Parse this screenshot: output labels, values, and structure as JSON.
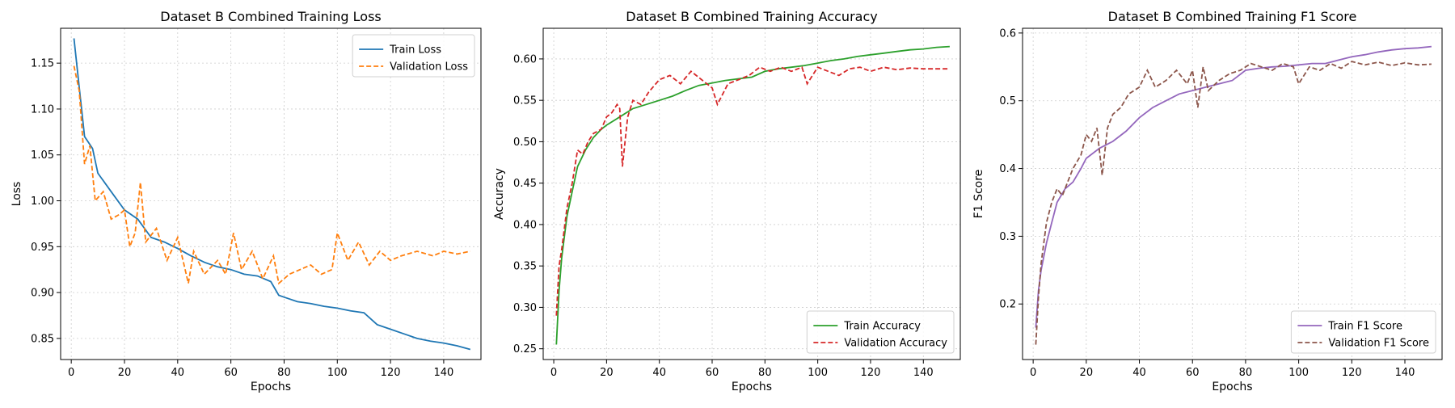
{
  "chart_data": [
    {
      "type": "line",
      "title": "Dataset B Combined Training Loss",
      "xlabel": "Epochs",
      "ylabel": "Loss",
      "xlim": [
        -4,
        154
      ],
      "ylim": [
        0.827,
        1.188
      ],
      "xticks": [
        0,
        20,
        40,
        60,
        80,
        100,
        120,
        140
      ],
      "yticks": [
        0.85,
        0.9,
        0.95,
        1.0,
        1.05,
        1.1,
        1.15
      ],
      "ytick_labels": [
        "0.85",
        "0.90",
        "0.95",
        "1.00",
        "1.05",
        "1.10",
        "1.15"
      ],
      "grid": true,
      "legend_position": "top-right",
      "series": [
        {
          "name": "Train Loss",
          "color": "#1f77b4",
          "style": "solid",
          "x": [
            1,
            5,
            8,
            10,
            15,
            20,
            25,
            30,
            35,
            40,
            45,
            50,
            55,
            60,
            65,
            70,
            75,
            78,
            80,
            85,
            90,
            95,
            100,
            105,
            110,
            115,
            120,
            125,
            130,
            135,
            140,
            145,
            150
          ],
          "y": [
            1.177,
            1.07,
            1.057,
            1.03,
            1.01,
            0.99,
            0.98,
            0.96,
            0.955,
            0.948,
            0.94,
            0.933,
            0.928,
            0.925,
            0.92,
            0.918,
            0.912,
            0.897,
            0.895,
            0.89,
            0.888,
            0.885,
            0.883,
            0.88,
            0.878,
            0.865,
            0.86,
            0.855,
            0.85,
            0.847,
            0.845,
            0.842,
            0.838
          ]
        },
        {
          "name": "Validation Loss",
          "color": "#ff7f0e",
          "style": "dashed",
          "x": [
            1,
            3,
            5,
            7,
            9,
            12,
            15,
            18,
            20,
            22,
            24,
            26,
            28,
            32,
            36,
            40,
            44,
            46,
            50,
            55,
            58,
            61,
            64,
            68,
            72,
            76,
            78,
            82,
            86,
            90,
            94,
            98,
            100,
            104,
            108,
            112,
            116,
            120,
            124,
            130,
            136,
            140,
            145,
            150
          ],
          "y": [
            1.147,
            1.12,
            1.04,
            1.06,
            1.0,
            1.01,
            0.98,
            0.985,
            0.99,
            0.95,
            0.965,
            1.02,
            0.955,
            0.97,
            0.935,
            0.96,
            0.91,
            0.945,
            0.92,
            0.935,
            0.92,
            0.965,
            0.925,
            0.945,
            0.915,
            0.94,
            0.91,
            0.92,
            0.925,
            0.93,
            0.92,
            0.925,
            0.965,
            0.935,
            0.955,
            0.93,
            0.945,
            0.935,
            0.94,
            0.945,
            0.94,
            0.945,
            0.942,
            0.945
          ]
        }
      ]
    },
    {
      "type": "line",
      "title": "Dataset B Combined Training Accuracy",
      "xlabel": "Epochs",
      "ylabel": "Accuracy",
      "xlim": [
        -4,
        154
      ],
      "ylim": [
        0.237,
        0.637
      ],
      "xticks": [
        0,
        20,
        40,
        60,
        80,
        100,
        120,
        140
      ],
      "yticks": [
        0.25,
        0.3,
        0.35,
        0.4,
        0.45,
        0.5,
        0.55,
        0.6
      ],
      "ytick_labels": [
        "0.25",
        "0.30",
        "0.35",
        "0.40",
        "0.45",
        "0.50",
        "0.55",
        "0.60"
      ],
      "grid": true,
      "legend_position": "bottom-right",
      "series": [
        {
          "name": "Train Accuracy",
          "color": "#2ca02c",
          "style": "solid",
          "x": [
            1,
            2,
            3,
            5,
            7,
            9,
            12,
            15,
            18,
            20,
            25,
            30,
            35,
            40,
            45,
            50,
            55,
            60,
            65,
            70,
            75,
            80,
            85,
            90,
            95,
            100,
            105,
            110,
            115,
            120,
            125,
            130,
            135,
            140,
            145,
            150
          ],
          "y": [
            0.255,
            0.32,
            0.36,
            0.41,
            0.44,
            0.47,
            0.49,
            0.505,
            0.515,
            0.52,
            0.53,
            0.54,
            0.545,
            0.55,
            0.555,
            0.562,
            0.568,
            0.571,
            0.574,
            0.576,
            0.578,
            0.585,
            0.588,
            0.59,
            0.592,
            0.595,
            0.598,
            0.6,
            0.603,
            0.605,
            0.607,
            0.609,
            0.611,
            0.612,
            0.614,
            0.615
          ]
        },
        {
          "name": "Validation Accuracy",
          "color": "#d62728",
          "style": "dashed",
          "x": [
            1,
            2,
            3,
            5,
            7,
            9,
            11,
            13,
            15,
            18,
            20,
            22,
            24,
            25,
            26,
            28,
            30,
            33,
            36,
            40,
            44,
            48,
            52,
            56,
            60,
            62,
            66,
            70,
            74,
            78,
            82,
            86,
            90,
            94,
            96,
            100,
            104,
            108,
            112,
            116,
            120,
            125,
            130,
            135,
            140,
            145,
            150
          ],
          "y": [
            0.29,
            0.35,
            0.37,
            0.42,
            0.45,
            0.49,
            0.485,
            0.5,
            0.51,
            0.515,
            0.53,
            0.535,
            0.545,
            0.54,
            0.47,
            0.53,
            0.55,
            0.545,
            0.56,
            0.575,
            0.58,
            0.57,
            0.585,
            0.575,
            0.565,
            0.545,
            0.57,
            0.575,
            0.58,
            0.59,
            0.585,
            0.59,
            0.585,
            0.59,
            0.57,
            0.59,
            0.585,
            0.58,
            0.588,
            0.59,
            0.585,
            0.59,
            0.587,
            0.589,
            0.588,
            0.588,
            0.588
          ]
        }
      ]
    },
    {
      "type": "line",
      "title": "Dataset B Combined Training F1 Score",
      "xlabel": "Epochs",
      "ylabel": "F1 Score",
      "xlim": [
        -4,
        154
      ],
      "ylim": [
        0.118,
        0.607
      ],
      "xticks": [
        0,
        20,
        40,
        60,
        80,
        100,
        120,
        140
      ],
      "yticks": [
        0.2,
        0.3,
        0.4,
        0.5,
        0.6
      ],
      "ytick_labels": [
        "0.2",
        "0.3",
        "0.4",
        "0.5",
        "0.6"
      ],
      "grid": true,
      "legend_position": "bottom-right",
      "series": [
        {
          "name": "Train F1 Score",
          "color": "#9467bd",
          "style": "solid",
          "x": [
            1,
            2,
            3,
            5,
            7,
            9,
            12,
            15,
            18,
            20,
            25,
            30,
            35,
            40,
            45,
            50,
            55,
            60,
            65,
            70,
            75,
            80,
            85,
            90,
            95,
            100,
            105,
            110,
            115,
            120,
            125,
            130,
            135,
            140,
            145,
            150
          ],
          "y": [
            0.165,
            0.22,
            0.25,
            0.29,
            0.32,
            0.35,
            0.37,
            0.38,
            0.4,
            0.415,
            0.43,
            0.44,
            0.455,
            0.475,
            0.49,
            0.5,
            0.51,
            0.515,
            0.52,
            0.525,
            0.53,
            0.545,
            0.548,
            0.55,
            0.551,
            0.553,
            0.555,
            0.555,
            0.56,
            0.565,
            0.568,
            0.572,
            0.575,
            0.577,
            0.578,
            0.58
          ]
        },
        {
          "name": "Validation F1 Score",
          "color": "#8c564b",
          "style": "dashed",
          "x": [
            1,
            2,
            3,
            5,
            7,
            9,
            11,
            13,
            15,
            18,
            20,
            22,
            24,
            26,
            28,
            30,
            33,
            36,
            40,
            43,
            46,
            50,
            54,
            58,
            60,
            62,
            64,
            66,
            70,
            74,
            78,
            82,
            86,
            90,
            94,
            98,
            100,
            104,
            108,
            112,
            116,
            120,
            125,
            130,
            135,
            140,
            145,
            150
          ],
          "y": [
            0.14,
            0.21,
            0.26,
            0.32,
            0.35,
            0.37,
            0.36,
            0.38,
            0.4,
            0.42,
            0.45,
            0.44,
            0.46,
            0.39,
            0.46,
            0.48,
            0.49,
            0.51,
            0.52,
            0.545,
            0.52,
            0.53,
            0.545,
            0.525,
            0.545,
            0.49,
            0.55,
            0.515,
            0.53,
            0.54,
            0.545,
            0.555,
            0.55,
            0.545,
            0.555,
            0.55,
            0.525,
            0.55,
            0.545,
            0.555,
            0.548,
            0.558,
            0.553,
            0.557,
            0.552,
            0.556,
            0.553,
            0.554
          ]
        }
      ]
    }
  ]
}
